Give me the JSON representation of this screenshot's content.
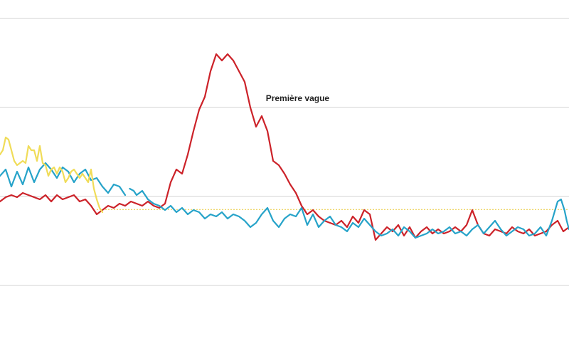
{
  "chart_data": {
    "type": "line",
    "title": "",
    "xlabel": "",
    "ylabel": "",
    "xlim": [
      0,
      100
    ],
    "ylim": [
      0,
      100
    ],
    "grid": true,
    "gridlines_y": [
      0,
      33.3,
      66.7,
      100
    ],
    "reference_line": {
      "y": 28.2,
      "x_start": 17,
      "x_end": 100,
      "color": "#e8c93a"
    },
    "annotations": [
      {
        "text": "Première vague",
        "x": 52.3,
        "y": 68.8
      }
    ],
    "series": [
      {
        "color": "#cc2229",
        "segments": [
          [
            [
              0.0,
              31.2
            ],
            [
              1.0,
              32.8
            ],
            [
              2.0,
              33.6
            ],
            [
              3.0,
              32.8
            ],
            [
              4.0,
              34.4
            ],
            [
              5.0,
              33.6
            ],
            [
              6.0,
              32.8
            ],
            [
              7.0,
              32.0
            ],
            [
              8.0,
              33.6
            ],
            [
              9.0,
              31.2
            ],
            [
              10.0,
              33.6
            ],
            [
              11.0,
              32.0
            ],
            [
              12.0,
              32.8
            ],
            [
              13.0,
              33.6
            ],
            [
              14.0,
              31.2
            ],
            [
              15.0,
              32.0
            ],
            [
              16.0,
              29.6
            ],
            [
              17.0,
              26.4
            ],
            [
              18.0,
              28.0
            ],
            [
              19.0,
              29.6
            ],
            [
              20.0,
              28.8
            ],
            [
              21.0,
              30.4
            ],
            [
              22.0,
              29.6
            ],
            [
              23.0,
              31.2
            ],
            [
              24.0,
              30.4
            ],
            [
              25.0,
              29.6
            ],
            [
              26.0,
              31.2
            ],
            [
              27.0,
              29.6
            ],
            [
              28.0,
              28.8
            ],
            [
              29.0,
              30.4
            ],
            [
              30.0,
              38.4
            ],
            [
              31.0,
              43.2
            ],
            [
              32.0,
              41.6
            ],
            [
              33.0,
              48.8
            ],
            [
              34.0,
              57.6
            ],
            [
              35.0,
              65.6
            ],
            [
              36.0,
              70.4
            ],
            [
              37.0,
              80.0
            ],
            [
              38.0,
              86.4
            ],
            [
              39.0,
              84.0
            ],
            [
              40.0,
              86.4
            ],
            [
              41.0,
              84.0
            ],
            [
              42.0,
              80.0
            ],
            [
              43.0,
              76.0
            ],
            [
              44.0,
              66.4
            ],
            [
              45.0,
              59.2
            ],
            [
              46.0,
              63.2
            ],
            [
              47.0,
              57.6
            ],
            [
              48.0,
              46.4
            ],
            [
              49.0,
              44.8
            ],
            [
              50.0,
              41.6
            ],
            [
              51.0,
              37.6
            ],
            [
              52.0,
              34.4
            ],
            [
              53.0,
              29.6
            ],
            [
              54.0,
              26.4
            ],
            [
              55.0,
              28.0
            ],
            [
              56.0,
              25.6
            ],
            [
              57.0,
              24.0
            ],
            [
              58.0,
              23.2
            ],
            [
              59.0,
              22.4
            ],
            [
              60.0,
              24.0
            ],
            [
              61.0,
              21.6
            ],
            [
              62.0,
              25.6
            ],
            [
              63.0,
              23.2
            ],
            [
              64.0,
              28.0
            ],
            [
              65.0,
              26.4
            ],
            [
              66.0,
              16.8
            ],
            [
              67.0,
              19.2
            ],
            [
              68.0,
              21.6
            ],
            [
              69.0,
              20.0
            ],
            [
              70.0,
              22.4
            ],
            [
              71.0,
              18.4
            ],
            [
              72.0,
              21.6
            ],
            [
              73.0,
              17.6
            ],
            [
              74.0,
              20.0
            ],
            [
              75.0,
              21.6
            ],
            [
              76.0,
              19.2
            ],
            [
              77.0,
              20.8
            ],
            [
              78.0,
              19.2
            ],
            [
              79.0,
              20.0
            ],
            [
              80.0,
              21.6
            ],
            [
              81.0,
              20.0
            ],
            [
              82.0,
              22.4
            ],
            [
              83.0,
              28.0
            ],
            [
              84.0,
              22.4
            ],
            [
              85.0,
              19.2
            ],
            [
              86.0,
              18.4
            ],
            [
              87.0,
              20.8
            ],
            [
              88.0,
              20.0
            ],
            [
              89.0,
              19.2
            ],
            [
              90.0,
              21.6
            ],
            [
              91.0,
              20.0
            ],
            [
              92.0,
              19.2
            ],
            [
              93.0,
              20.8
            ],
            [
              94.0,
              18.4
            ],
            [
              95.0,
              19.2
            ],
            [
              96.0,
              20.0
            ],
            [
              97.0,
              22.4
            ],
            [
              98.0,
              24.0
            ],
            [
              99.0,
              20.0
            ],
            [
              100.0,
              21.6
            ]
          ]
        ]
      },
      {
        "color": "#26a3c9",
        "segments": [
          [
            [
              0.0,
              40.8
            ],
            [
              1.0,
              43.2
            ],
            [
              2.0,
              36.8
            ],
            [
              3.0,
              42.4
            ],
            [
              4.0,
              37.6
            ],
            [
              5.0,
              44.0
            ],
            [
              6.0,
              38.4
            ],
            [
              7.0,
              43.2
            ],
            [
              8.0,
              45.6
            ],
            [
              9.0,
              43.2
            ],
            [
              10.0,
              40.0
            ],
            [
              11.0,
              44.0
            ],
            [
              12.0,
              42.4
            ],
            [
              13.0,
              38.4
            ],
            [
              14.0,
              41.6
            ],
            [
              15.0,
              43.2
            ],
            [
              16.0,
              39.2
            ],
            [
              17.0,
              40.0
            ],
            [
              18.0,
              36.8
            ],
            [
              19.0,
              34.4
            ],
            [
              20.0,
              37.6
            ],
            [
              21.0,
              36.8
            ],
            [
              22.0,
              33.6
            ]
          ],
          [
            [
              22.8,
              36.0
            ],
            [
              23.5,
              35.2
            ],
            [
              24.0,
              33.6
            ],
            [
              25.0,
              35.2
            ],
            [
              26.0,
              32.0
            ],
            [
              27.0,
              30.4
            ],
            [
              28.0,
              29.6
            ],
            [
              29.0,
              28.0
            ],
            [
              30.0,
              29.6
            ],
            [
              31.0,
              27.2
            ],
            [
              32.0,
              28.8
            ],
            [
              33.0,
              26.4
            ],
            [
              34.0,
              28.0
            ],
            [
              35.0,
              27.2
            ],
            [
              36.0,
              24.8
            ],
            [
              37.0,
              26.4
            ],
            [
              38.0,
              25.6
            ],
            [
              39.0,
              27.2
            ],
            [
              40.0,
              24.8
            ],
            [
              41.0,
              26.4
            ],
            [
              42.0,
              25.6
            ],
            [
              43.0,
              24.0
            ],
            [
              44.0,
              21.6
            ],
            [
              45.0,
              23.2
            ],
            [
              46.0,
              26.4
            ],
            [
              47.0,
              28.8
            ],
            [
              48.0,
              24.0
            ],
            [
              49.0,
              21.6
            ],
            [
              50.0,
              24.8
            ],
            [
              51.0,
              26.4
            ],
            [
              52.0,
              25.6
            ],
            [
              53.0,
              28.8
            ],
            [
              54.0,
              22.4
            ],
            [
              55.0,
              26.4
            ],
            [
              56.0,
              21.6
            ],
            [
              57.0,
              24.0
            ],
            [
              58.0,
              25.6
            ],
            [
              59.0,
              22.4
            ],
            [
              60.0,
              21.6
            ],
            [
              61.0,
              20.0
            ],
            [
              62.0,
              23.2
            ],
            [
              63.0,
              21.6
            ],
            [
              64.0,
              24.8
            ],
            [
              65.0,
              22.4
            ],
            [
              66.0,
              20.0
            ],
            [
              67.0,
              18.4
            ],
            [
              68.0,
              19.2
            ],
            [
              69.0,
              20.8
            ],
            [
              70.0,
              18.4
            ],
            [
              71.0,
              21.6
            ],
            [
              72.0,
              20.0
            ],
            [
              73.0,
              17.6
            ],
            [
              74.0,
              18.4
            ],
            [
              75.0,
              19.2
            ],
            [
              76.0,
              20.8
            ],
            [
              77.0,
              19.2
            ],
            [
              78.0,
              20.0
            ],
            [
              79.0,
              21.6
            ],
            [
              80.0,
              19.2
            ],
            [
              81.0,
              20.0
            ],
            [
              82.0,
              18.4
            ],
            [
              83.0,
              20.8
            ],
            [
              84.0,
              22.4
            ],
            [
              85.0,
              19.2
            ],
            [
              86.0,
              21.6
            ],
            [
              87.0,
              24.0
            ],
            [
              88.0,
              20.8
            ],
            [
              89.0,
              18.4
            ],
            [
              90.0,
              20.0
            ],
            [
              91.0,
              21.6
            ],
            [
              92.0,
              20.8
            ],
            [
              93.0,
              18.4
            ],
            [
              94.0,
              19.2
            ],
            [
              95.0,
              21.6
            ],
            [
              96.0,
              18.4
            ],
            [
              97.0,
              24.0
            ],
            [
              98.0,
              31.2
            ],
            [
              98.6,
              32.0
            ],
            [
              99.2,
              28.0
            ],
            [
              99.6,
              24.0
            ],
            [
              100.0,
              20.8
            ]
          ]
        ]
      },
      {
        "color": "#f0dc58",
        "segments": [
          [
            [
              0.0,
              48.8
            ],
            [
              0.5,
              50.4
            ],
            [
              1.0,
              55.2
            ],
            [
              1.5,
              54.4
            ],
            [
              2.0,
              50.4
            ],
            [
              2.5,
              46.4
            ],
            [
              3.0,
              44.8
            ],
            [
              3.5,
              45.6
            ],
            [
              4.0,
              46.4
            ],
            [
              4.5,
              45.6
            ],
            [
              5.0,
              52.0
            ],
            [
              5.5,
              50.4
            ],
            [
              6.0,
              50.4
            ],
            [
              6.5,
              46.4
            ],
            [
              7.0,
              52.0
            ],
            [
              7.5,
              45.6
            ],
            [
              8.0,
              44.8
            ],
            [
              8.5,
              40.8
            ],
            [
              9.0,
              43.2
            ],
            [
              9.5,
              44.0
            ],
            [
              10.0,
              41.6
            ],
            [
              10.5,
              44.0
            ],
            [
              11.0,
              42.4
            ],
            [
              11.5,
              38.4
            ],
            [
              12.0,
              40.0
            ],
            [
              12.5,
              42.4
            ],
            [
              13.0,
              43.2
            ],
            [
              13.5,
              41.6
            ],
            [
              14.0,
              40.0
            ],
            [
              14.5,
              41.6
            ],
            [
              15.0,
              40.0
            ],
            [
              15.5,
              38.4
            ],
            [
              16.0,
              43.2
            ],
            [
              16.5,
              36.0
            ],
            [
              17.0,
              32.0
            ],
            [
              17.5,
              28.8
            ],
            [
              18.0,
              27.2
            ]
          ]
        ]
      }
    ]
  }
}
